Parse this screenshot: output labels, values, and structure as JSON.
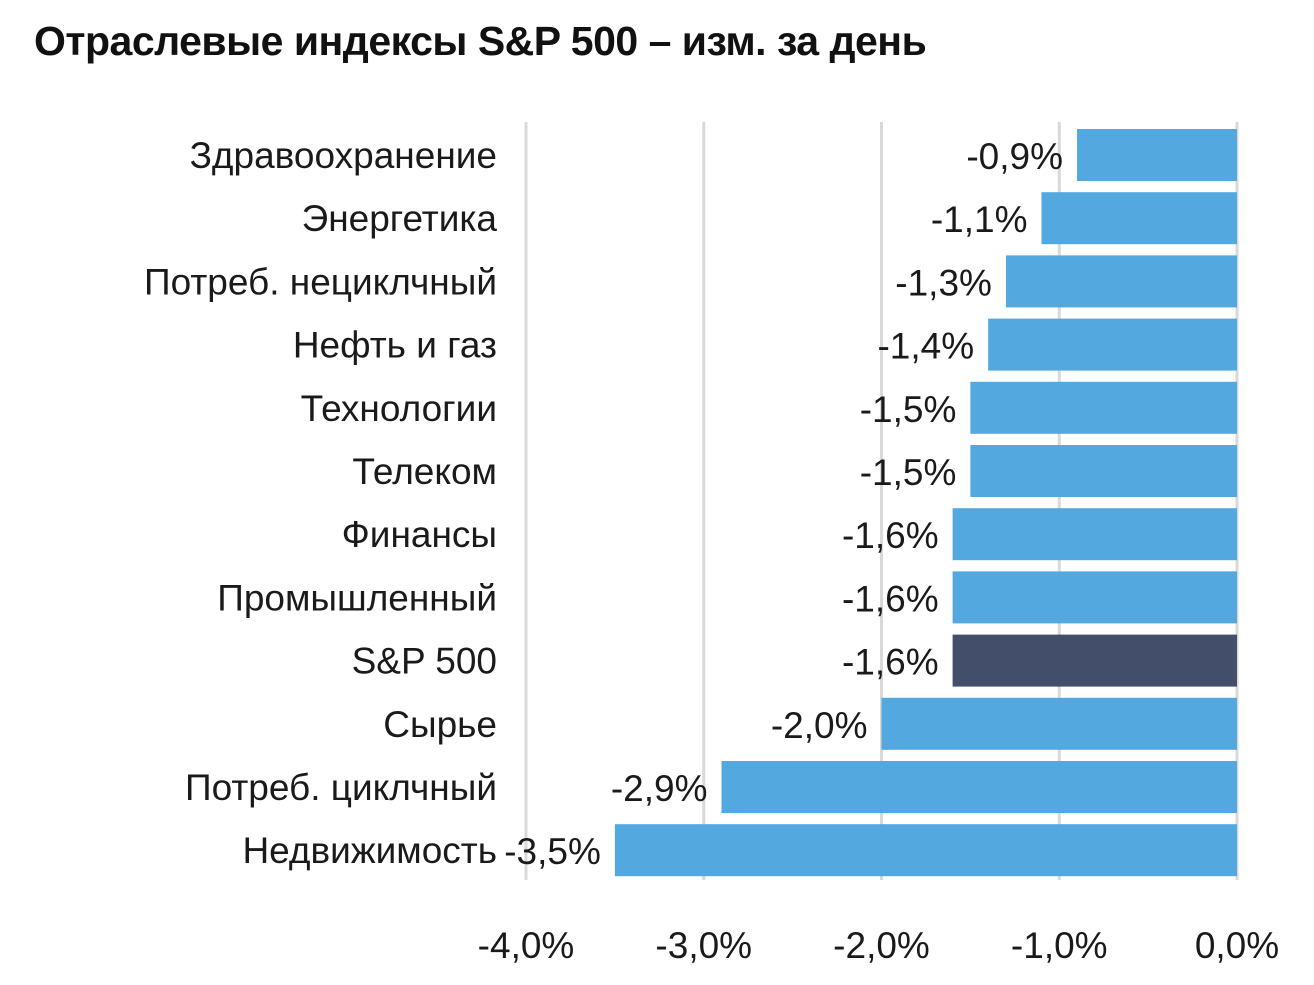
{
  "chart_data": {
    "type": "bar",
    "orientation": "horizontal",
    "title": "Отраслевые индексы S&P 500 – изм. за день",
    "categories": [
      "Здравоохранение",
      "Энергетика",
      "Потреб. нециклчный",
      "Нефть и газ",
      "Технологии",
      "Телеком",
      "Финансы",
      "Промышленный",
      "S&P 500",
      "Сырье",
      "Потреб. циклчный",
      "Недвижимость"
    ],
    "values": [
      -0.9,
      -1.1,
      -1.3,
      -1.4,
      -1.5,
      -1.5,
      -1.6,
      -1.6,
      -1.6,
      -2.0,
      -2.9,
      -3.5
    ],
    "value_labels": [
      "-0,9%",
      "-1,1%",
      "-1,3%",
      "-1,4%",
      "-1,5%",
      "-1,5%",
      "-1,6%",
      "-1,6%",
      "-1,6%",
      "-2,0%",
      "-2,9%",
      "-3,5%"
    ],
    "xlim": [
      -4.0,
      0.0
    ],
    "x_ticks": [
      -4.0,
      -3.0,
      -2.0,
      -1.0,
      0.0
    ],
    "x_tick_labels": [
      "-4,0%",
      "-3,0%",
      "-2,0%",
      "-1,0%",
      "0,0%"
    ],
    "grid": "vertical",
    "legend": "none",
    "colors": {
      "bar": "#52a8df",
      "highlight": "#434e6b",
      "grid": "#d9d9d9"
    },
    "highlight_category": "S&P 500"
  }
}
